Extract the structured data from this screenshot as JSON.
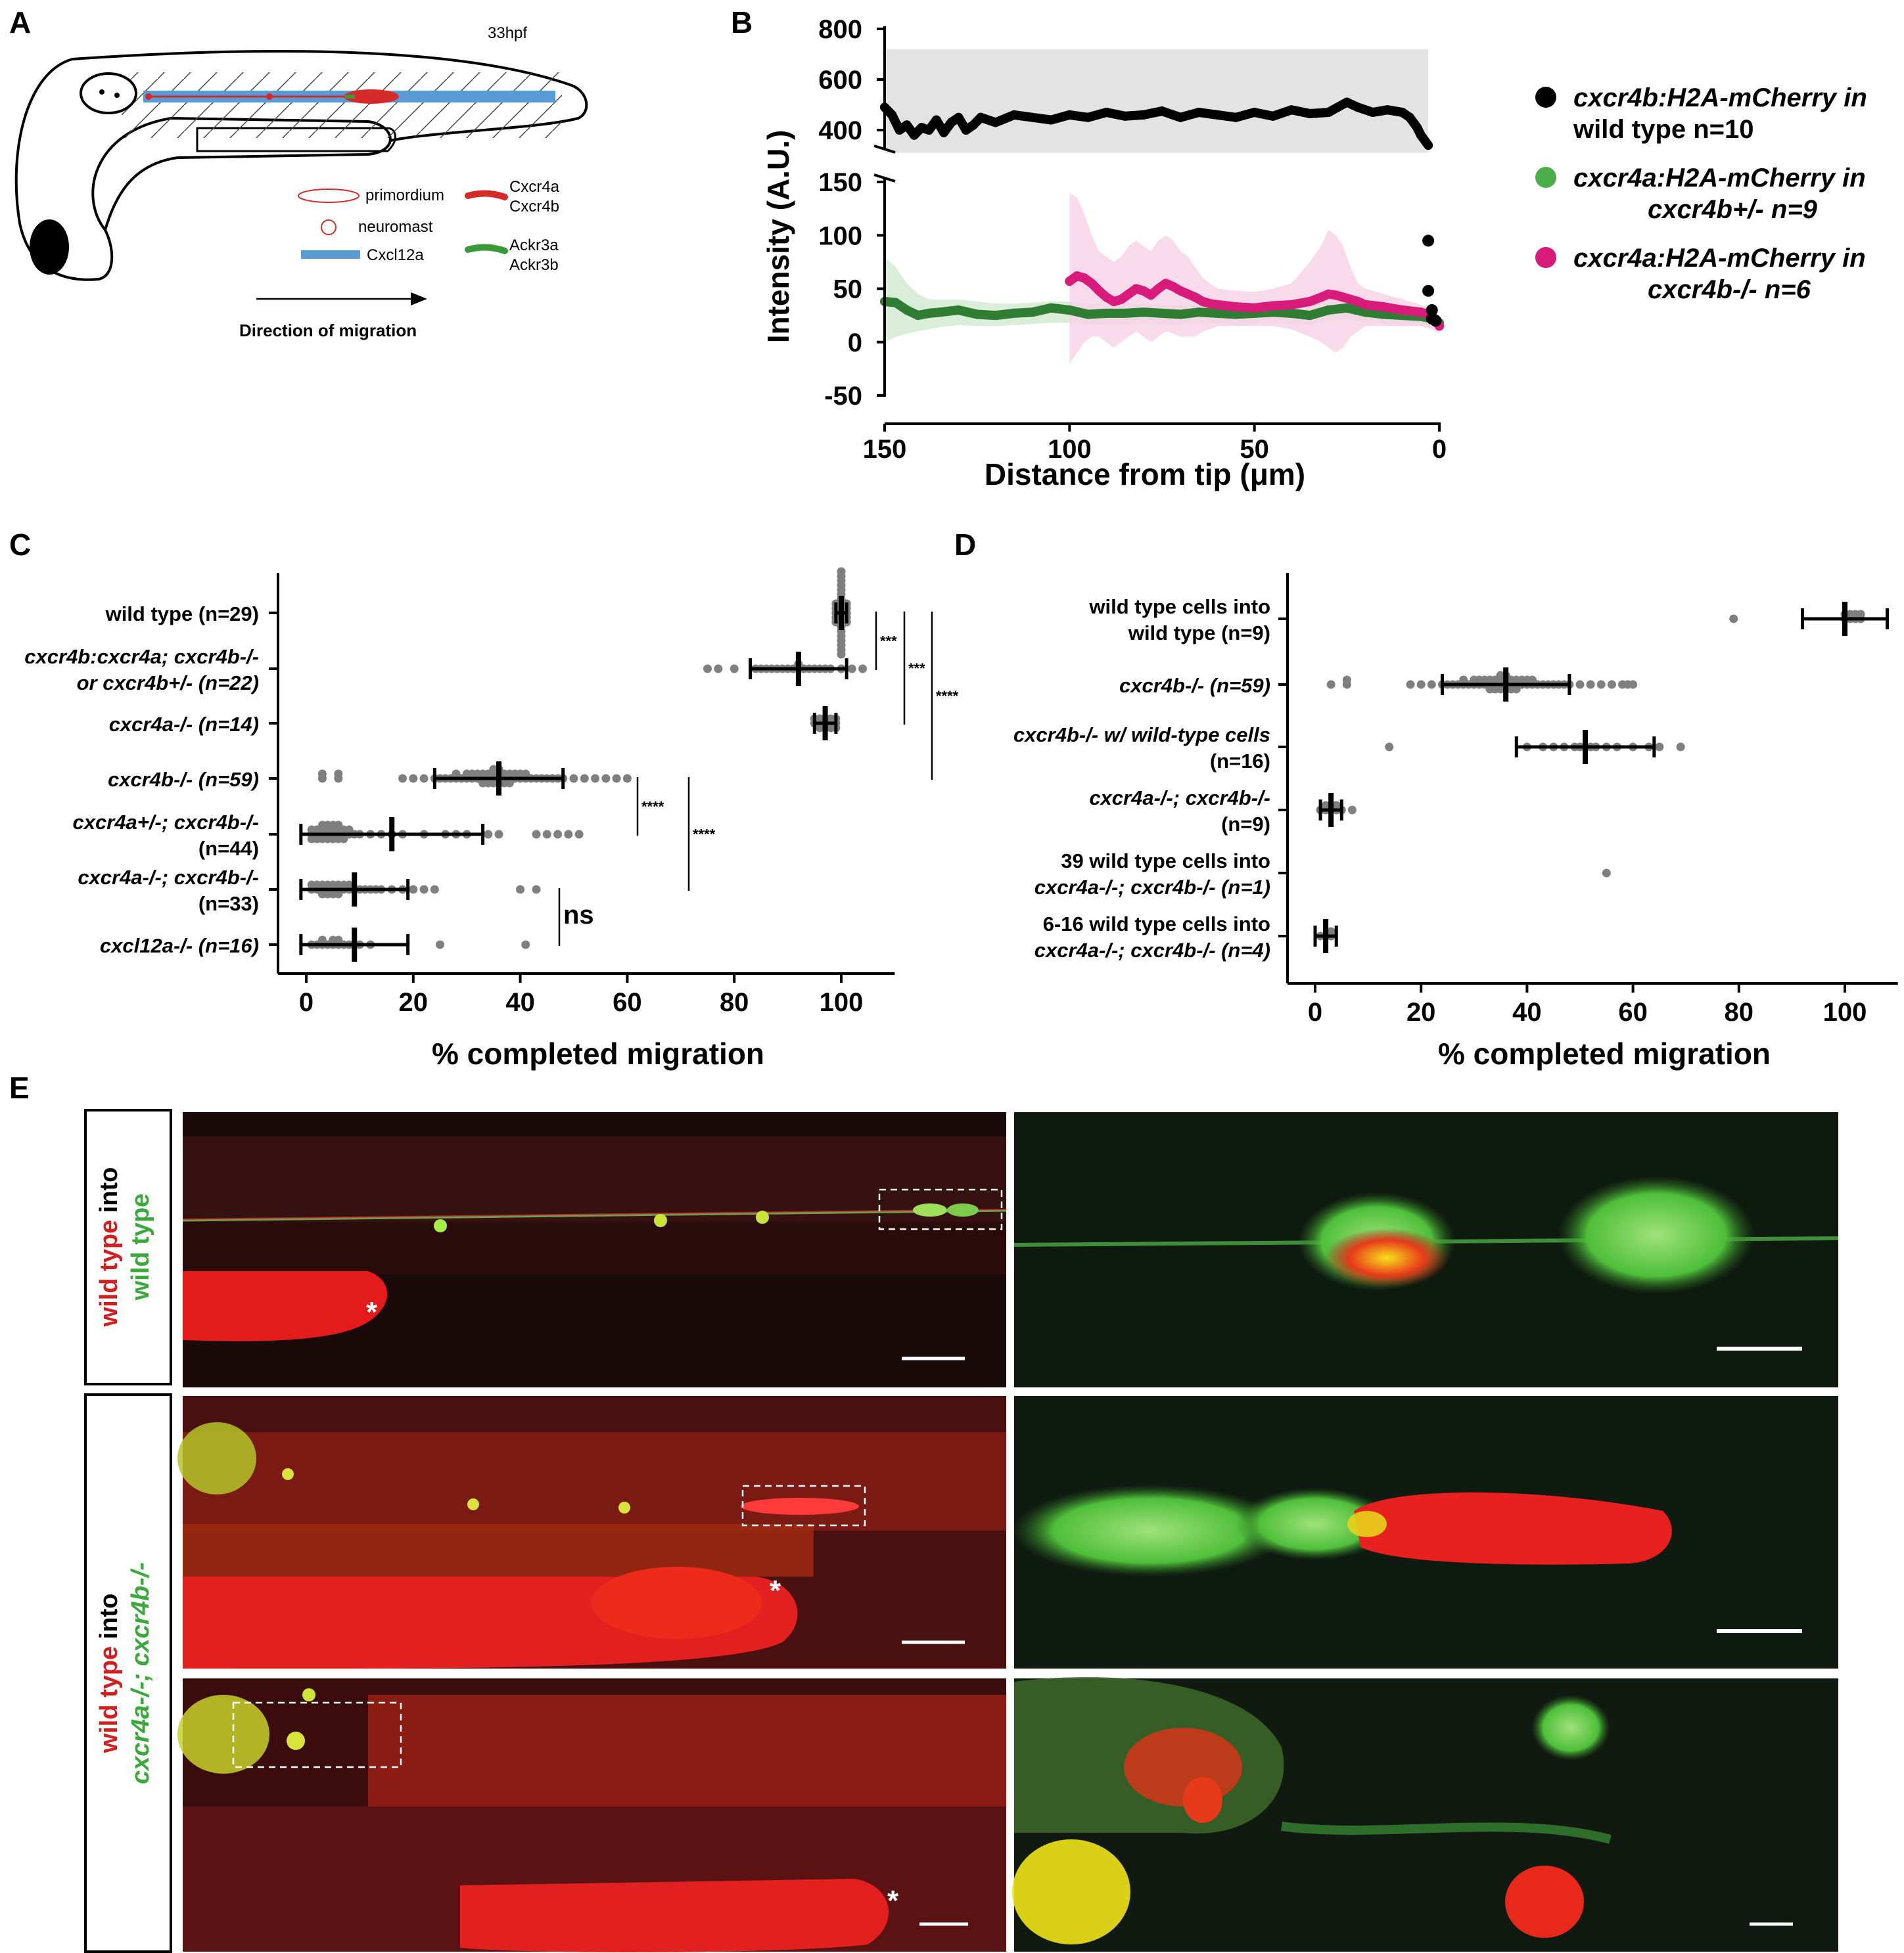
{
  "figure": {
    "panel_labels": [
      "A",
      "B",
      "C",
      "D",
      "E"
    ]
  },
  "panel_a": {
    "stage": "33hpf",
    "legend": [
      {
        "symbol": "primordium-ellipse",
        "label": "primordium"
      },
      {
        "symbol": "neuromast-circle",
        "label": "neuromast"
      },
      {
        "symbol": "blue-bar",
        "label": "Cxcl12a"
      },
      {
        "symbol": "red-bar",
        "label_lines": [
          "Cxcr4a",
          "Cxcr4b"
        ]
      },
      {
        "symbol": "green-bar",
        "label_lines": [
          "Ackr3a",
          "Ackr3b"
        ]
      }
    ],
    "arrow_label": "Direction of migration",
    "colors": {
      "cxcl12a": "#5b9bd5",
      "cxcr4": "#d42a2a",
      "ackr3": "#3a9a3a"
    }
  },
  "chart_data": [
    {
      "panel": "B",
      "type": "line",
      "xlabel": "Distance from tip (μm)",
      "ylabel": "Intensity (A.U.)",
      "x_reversed": true,
      "xlim": [
        150,
        0
      ],
      "xticks": [
        150,
        100,
        50,
        0
      ],
      "y_axis_broken": true,
      "ylim_lower": [
        -50,
        150
      ],
      "yticks_lower": [
        -50,
        0,
        50,
        100,
        150
      ],
      "ylim_upper": [
        300,
        800
      ],
      "yticks_upper": [
        400,
        600,
        800
      ],
      "series": [
        {
          "name_lines": [
            "cxcr4b:H2A-mCherry in",
            "wild type n=10"
          ],
          "italic_part": "cxcr4b:H2A-mCherry",
          "color": "#000000",
          "band_color": "#d9d9d9",
          "x": [
            150,
            148,
            146,
            144,
            142,
            140,
            138,
            136,
            134,
            132,
            130,
            128,
            126,
            124,
            120,
            115,
            110,
            105,
            100,
            95,
            90,
            85,
            80,
            75,
            70,
            65,
            60,
            55,
            50,
            45,
            40,
            35,
            30,
            25,
            22,
            18,
            14,
            10,
            8,
            6,
            5,
            4,
            3
          ],
          "values": [
            490,
            460,
            400,
            420,
            380,
            410,
            400,
            440,
            390,
            430,
            450,
            400,
            420,
            450,
            430,
            460,
            450,
            440,
            460,
            450,
            470,
            455,
            460,
            475,
            450,
            470,
            460,
            450,
            470,
            455,
            480,
            465,
            470,
            510,
            490,
            470,
            480,
            470,
            450,
            410,
            380,
            360,
            340
          ],
          "band_upper": 720,
          "band_lower": 310
        },
        {
          "name_lines": [
            "cxcr4a:H2A-mCherry in",
            "cxcr4b+/- n=9"
          ],
          "italic_part": "cxcr4a:H2A-mCherry",
          "color": "#2e7d32",
          "band_color": "#cfe8cf",
          "x": [
            150,
            147,
            144,
            141,
            138,
            135,
            130,
            125,
            120,
            115,
            110,
            105,
            100,
            95,
            90,
            85,
            80,
            75,
            70,
            65,
            60,
            55,
            50,
            45,
            40,
            35,
            30,
            25,
            20,
            15,
            10,
            5,
            2,
            0
          ],
          "values": [
            38,
            37,
            30,
            25,
            27,
            28,
            30,
            26,
            25,
            27,
            28,
            32,
            30,
            26,
            27,
            27,
            28,
            27,
            26,
            28,
            27,
            26,
            27,
            28,
            27,
            25,
            30,
            32,
            28,
            26,
            25,
            24,
            22,
            18
          ],
          "band_upper": [
            80,
            70,
            55,
            45,
            40,
            40,
            40,
            38,
            36,
            36,
            37,
            38,
            38,
            36,
            36,
            36,
            36,
            35,
            35,
            36,
            35,
            34,
            35,
            36,
            35,
            34,
            38,
            40,
            37,
            35,
            34,
            33,
            30,
            25
          ],
          "band_lower": [
            0,
            5,
            8,
            10,
            12,
            14,
            16,
            15,
            15,
            16,
            17,
            18,
            18,
            17,
            17,
            17,
            18,
            17,
            17,
            18,
            17,
            16,
            17,
            18,
            17,
            16,
            20,
            22,
            18,
            17,
            16,
            15,
            14,
            12
          ]
        },
        {
          "name_lines": [
            "cxcr4a:H2A-mCherry in",
            "cxcr4b-/- n=6"
          ],
          "italic_part": "cxcr4a:H2A-mCherry",
          "color": "#d81b7a",
          "band_color": "#f7d1e6",
          "x": [
            100,
            98,
            96,
            94,
            92,
            90,
            88,
            86,
            84,
            82,
            80,
            78,
            76,
            74,
            72,
            70,
            68,
            66,
            64,
            62,
            60,
            55,
            50,
            45,
            40,
            35,
            32,
            30,
            28,
            26,
            24,
            22,
            20,
            15,
            10,
            5,
            2,
            0
          ],
          "values": [
            57,
            62,
            60,
            55,
            48,
            42,
            38,
            40,
            45,
            50,
            48,
            44,
            50,
            55,
            52,
            48,
            45,
            42,
            38,
            36,
            35,
            33,
            32,
            34,
            35,
            38,
            42,
            45,
            44,
            42,
            40,
            38,
            35,
            33,
            30,
            28,
            25,
            15
          ],
          "band_upper": [
            140,
            135,
            120,
            100,
            85,
            80,
            75,
            80,
            90,
            95,
            90,
            85,
            95,
            100,
            95,
            85,
            80,
            70,
            60,
            55,
            50,
            48,
            47,
            50,
            55,
            75,
            90,
            105,
            100,
            90,
            70,
            55,
            50,
            45,
            40,
            35,
            30,
            20
          ],
          "band_lower": [
            -20,
            -10,
            0,
            5,
            5,
            0,
            -5,
            0,
            5,
            10,
            5,
            0,
            5,
            10,
            8,
            5,
            5,
            5,
            10,
            12,
            15,
            15,
            15,
            15,
            12,
            5,
            0,
            -5,
            -10,
            -5,
            5,
            10,
            15,
            15,
            15,
            15,
            12,
            8
          ]
        }
      ],
      "tip_points_black": [
        [
          3,
          95
        ],
        [
          3,
          48
        ],
        [
          2,
          30
        ],
        [
          2,
          22
        ],
        [
          1,
          20
        ]
      ]
    },
    {
      "panel": "C",
      "type": "scatter",
      "xlabel": "% completed migration",
      "xlim": [
        -5,
        110
      ],
      "xticks": [
        0,
        20,
        40,
        60,
        80,
        100
      ],
      "categories": [
        {
          "label_lines": [
            "wild type (n=29)"
          ],
          "mean": 100,
          "sd": 1,
          "points": [
            99,
            99,
            100,
            100,
            100,
            100,
            100,
            100,
            100,
            100,
            100,
            100,
            100,
            100,
            100,
            100,
            101,
            101,
            101,
            101,
            99,
            99,
            100,
            100,
            100,
            101,
            100,
            99,
            100
          ]
        },
        {
          "label_lines": [
            "cxcr4b:cxcr4a; cxcr4b-/-",
            "or cxcr4b+/- (n=22)"
          ],
          "mean": 92,
          "sd": 9,
          "points": [
            75,
            77,
            80,
            84,
            85,
            86,
            87,
            88,
            89,
            90,
            91,
            92,
            92,
            93,
            94,
            95,
            96,
            97,
            98,
            100,
            102,
            104
          ]
        },
        {
          "label_lines": [
            "cxcr4a-/- (n=14)"
          ],
          "mean": 97,
          "sd": 2,
          "points": [
            95,
            95,
            96,
            96,
            96,
            97,
            97,
            97,
            98,
            98,
            98,
            99,
            99,
            99
          ]
        },
        {
          "label_lines": [
            "cxcr4b-/- (n=59)"
          ],
          "mean": 36,
          "sd": 12,
          "points": [
            3,
            3,
            6,
            6,
            18,
            20,
            22,
            24,
            25,
            26,
            27,
            28,
            28,
            29,
            30,
            30,
            31,
            31,
            32,
            32,
            33,
            33,
            33,
            34,
            34,
            34,
            35,
            35,
            35,
            35,
            36,
            36,
            36,
            36,
            37,
            37,
            37,
            38,
            38,
            38,
            39,
            39,
            40,
            40,
            41,
            41,
            42,
            43,
            44,
            45,
            46,
            47,
            48,
            50,
            52,
            54,
            56,
            58,
            60
          ]
        },
        {
          "label_lines": [
            "cxcr4a+/-; cxcr4b-/-",
            "(n=44)"
          ],
          "mean": 16,
          "sd": 17,
          "points": [
            1,
            1,
            1,
            2,
            2,
            2,
            3,
            3,
            3,
            3,
            4,
            4,
            4,
            4,
            5,
            5,
            5,
            5,
            6,
            6,
            6,
            6,
            7,
            7,
            7,
            8,
            8,
            9,
            10,
            12,
            14,
            16,
            18,
            22,
            26,
            28,
            30,
            34,
            36,
            43,
            45,
            47,
            49,
            51
          ]
        },
        {
          "label_lines": [
            "cxcr4a-/-; cxcr4b-/-",
            "(n=33)"
          ],
          "mean": 9,
          "sd": 10,
          "points": [
            1,
            1,
            2,
            2,
            3,
            3,
            3,
            4,
            4,
            4,
            5,
            5,
            5,
            6,
            6,
            6,
            7,
            7,
            8,
            8,
            9,
            10,
            11,
            12,
            13,
            14,
            16,
            18,
            20,
            22,
            24,
            40,
            43
          ]
        },
        {
          "label_lines": [
            "cxcl12a-/- (n=16)"
          ],
          "mean": 9,
          "sd": 10,
          "points": [
            1,
            2,
            3,
            3,
            4,
            5,
            5,
            6,
            6,
            7,
            8,
            9,
            10,
            12,
            25,
            41
          ]
        }
      ],
      "brackets": [
        {
          "rows": [
            0,
            1
          ],
          "label": "***"
        },
        {
          "rows": [
            0,
            2
          ],
          "label": "***"
        },
        {
          "rows": [
            0,
            3
          ],
          "label": "****"
        },
        {
          "rows": [
            3,
            4
          ],
          "label": "****"
        },
        {
          "rows": [
            3,
            5
          ],
          "label": "****"
        },
        {
          "rows": [
            5,
            6
          ],
          "label": "ns"
        }
      ]
    },
    {
      "panel": "D",
      "type": "scatter",
      "xlabel": "% completed migration",
      "xlim": [
        -5,
        110
      ],
      "xticks": [
        0,
        20,
        40,
        60,
        80,
        100
      ],
      "categories": [
        {
          "label_lines": [
            "wild type cells into",
            "wild type (n=9)"
          ],
          "mean": 100,
          "sd": 8,
          "points": [
            79,
            100,
            100,
            101,
            101,
            102,
            102,
            103,
            103
          ]
        },
        {
          "label_lines": [
            "cxcr4b-/- (n=59)"
          ],
          "mean": 36,
          "sd": 12,
          "points": [
            3,
            6,
            6,
            18,
            20,
            22,
            24,
            25,
            26,
            27,
            28,
            28,
            29,
            30,
            30,
            31,
            31,
            32,
            32,
            33,
            33,
            33,
            34,
            34,
            34,
            35,
            35,
            35,
            35,
            36,
            36,
            36,
            36,
            37,
            37,
            37,
            38,
            38,
            38,
            39,
            39,
            40,
            40,
            41,
            41,
            42,
            43,
            44,
            45,
            46,
            47,
            48,
            50,
            52,
            54,
            56,
            58,
            59,
            60
          ]
        },
        {
          "label_lines": [
            "cxcr4b-/- w/ wild-type cells",
            "(n=16)"
          ],
          "mean": 51,
          "sd": 13,
          "points": [
            14,
            40,
            43,
            45,
            47,
            49,
            50,
            51,
            52,
            53,
            55,
            57,
            60,
            63,
            65,
            69
          ]
        },
        {
          "label_lines": [
            "cxcr4a-/-; cxcr4b-/-",
            "(n=9)"
          ],
          "mean": 3,
          "sd": 2,
          "points": [
            1,
            2,
            2,
            3,
            3,
            4,
            4,
            5,
            7
          ]
        },
        {
          "label_lines": [
            "39 wild type cells into",
            "cxcr4a-/-; cxcr4b-/- (n=1)"
          ],
          "mean": null,
          "sd": null,
          "points": [
            55
          ]
        },
        {
          "label_lines": [
            "6-16 wild type cells into",
            "cxcr4a-/-; cxcr4b-/- (n=4)"
          ],
          "mean": 2,
          "sd": 2,
          "points": [
            1,
            2,
            3,
            3
          ]
        }
      ]
    }
  ],
  "panel_e": {
    "rows": [
      {
        "side_label_lines": [
          [
            {
              "t": "wild type",
              "c": "#d11f1f"
            },
            {
              "t": " into",
              "c": "#000000"
            }
          ],
          [
            {
              "t": "wild type",
              "c": "#3aa83a"
            }
          ]
        ]
      },
      {
        "side_label_lines": [
          [
            {
              "t": "wild type",
              "c": "#d11f1f"
            },
            {
              "t": " into",
              "c": "#000000"
            }
          ],
          [
            {
              "t": "cxcr4a-/-; cxcr4b-/-",
              "c": "#3aa83a"
            }
          ]
        ]
      }
    ],
    "asterisk": "*"
  }
}
